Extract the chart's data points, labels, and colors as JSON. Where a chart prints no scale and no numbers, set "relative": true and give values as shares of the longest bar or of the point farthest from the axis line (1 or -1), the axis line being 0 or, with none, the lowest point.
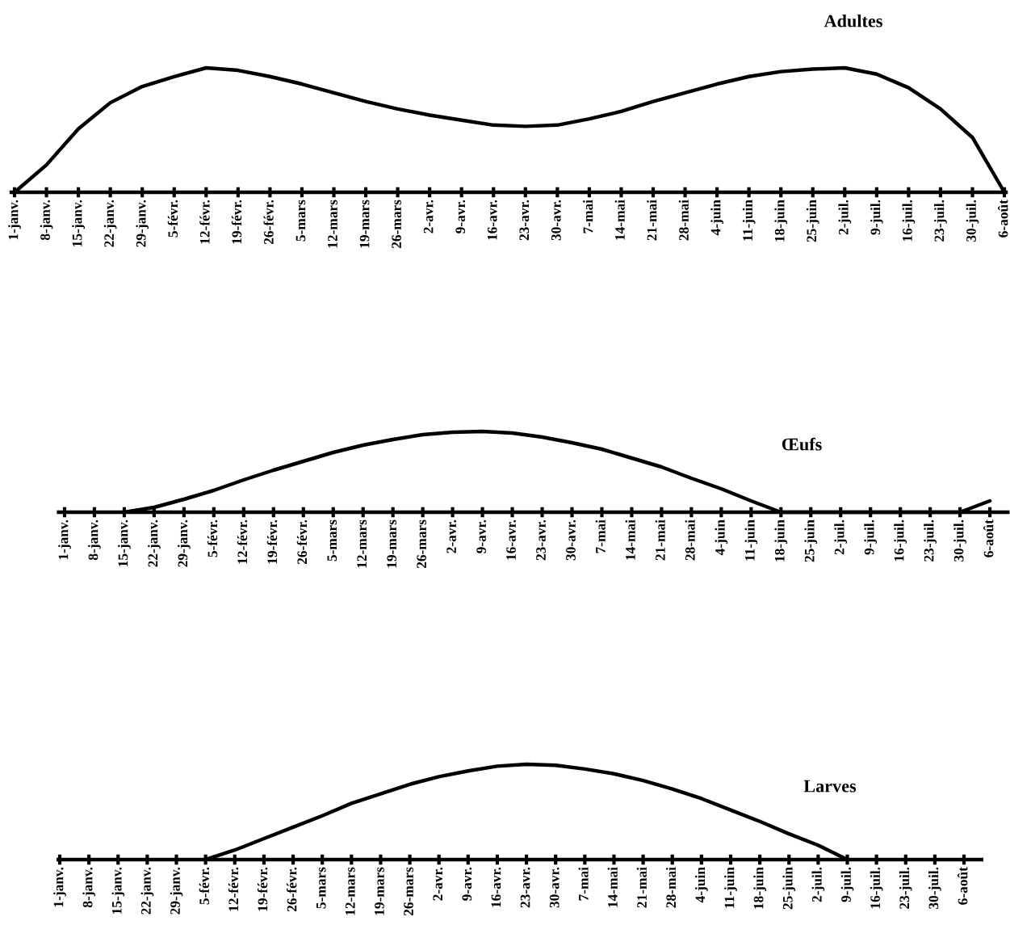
{
  "chart_data": [
    {
      "type": "line",
      "title": "Adultes",
      "relative": true,
      "tick_labels": "x",
      "categories": [
        "1-janv.",
        "8-janv.",
        "15-janv.",
        "22-janv.",
        "29-janv.",
        "5-févr.",
        "12-févr.",
        "19-févr.",
        "26-févr.",
        "5-mars",
        "12-mars",
        "19-mars",
        "26-mars",
        "2-avr.",
        "9-avr.",
        "16-avr.",
        "23-avr.",
        "30-avr.",
        "7-mai",
        "14-mai",
        "21-mai",
        "28-mai",
        "4-juin",
        "11-juin",
        "18-juin",
        "25-juin",
        "2-juil.",
        "9-juil.",
        "16-juil.",
        "23-juil.",
        "30-juil.",
        "6-août"
      ],
      "series": [
        {
          "color": "#000000",
          "values": [
            0,
            0.22,
            0.51,
            0.72,
            0.85,
            0.93,
            1.0,
            0.98,
            0.93,
            0.87,
            0.8,
            0.73,
            0.67,
            0.62,
            0.58,
            0.54,
            0.53,
            0.54,
            0.59,
            0.65,
            0.73,
            0.8,
            0.87,
            0.93,
            0.97,
            0.99,
            1.0,
            0.95,
            0.84,
            0.67,
            0.44,
            0
          ]
        }
      ]
    },
    {
      "type": "line",
      "title": "Œufs",
      "relative": true,
      "tick_labels": "x",
      "categories": [
        "1-janv.",
        "8-janv.",
        "15-janv.",
        "22-janv.",
        "29-janv.",
        "5-févr.",
        "12-févr.",
        "19-févr.",
        "26-févr.",
        "5-mars",
        "12-mars",
        "19-mars",
        "26-mars",
        "2-avr.",
        "9-avr.",
        "16-avr.",
        "23-avr.",
        "30-avr.",
        "7-mai",
        "14-mai",
        "21-mai",
        "28-mai",
        "4-juin",
        "11-juin",
        "18-juin",
        "25-juin",
        "2-juil.",
        "9-juil.",
        "16-juil.",
        "23-juil.",
        "30-juil.",
        "6-août"
      ],
      "series": [
        {
          "color": "#000000",
          "values": [
            null,
            null,
            0,
            0.06,
            0.16,
            0.27,
            0.4,
            0.52,
            0.63,
            0.74,
            0.83,
            0.9,
            0.96,
            0.99,
            1.0,
            0.98,
            0.93,
            0.86,
            0.78,
            0.67,
            0.56,
            0.42,
            0.29,
            0.14,
            0,
            0,
            0,
            0,
            0,
            0,
            0,
            0.14
          ]
        }
      ]
    },
    {
      "type": "line",
      "title": "Larves",
      "relative": true,
      "tick_labels": "x",
      "categories": [
        "1-janv.",
        "8-janv.",
        "15-janv.",
        "22-janv.",
        "29-janv.",
        "5-févr.",
        "12-févr.",
        "19-févr.",
        "26-févr.",
        "5-mars",
        "12-mars",
        "19-mars",
        "26-mars",
        "2-avr.",
        "9-avr.",
        "16-avr.",
        "23-avr.",
        "30-avr.",
        "7-mai",
        "14-mai",
        "21-mai",
        "28-mai",
        "4-juin",
        "11-juin",
        "18-juin",
        "25-juin",
        "2-juil.",
        "9-juil.",
        "16-juil.",
        "23-juil.",
        "30-juil.",
        "6-août"
      ],
      "series": [
        {
          "color": "#000000",
          "values": [
            null,
            null,
            null,
            null,
            null,
            0,
            0.1,
            0.22,
            0.34,
            0.46,
            0.59,
            0.69,
            0.79,
            0.87,
            0.93,
            0.98,
            1.0,
            0.99,
            0.95,
            0.9,
            0.83,
            0.74,
            0.64,
            0.52,
            0.4,
            0.27,
            0.15,
            0,
            null,
            null,
            null,
            null
          ]
        }
      ]
    }
  ]
}
